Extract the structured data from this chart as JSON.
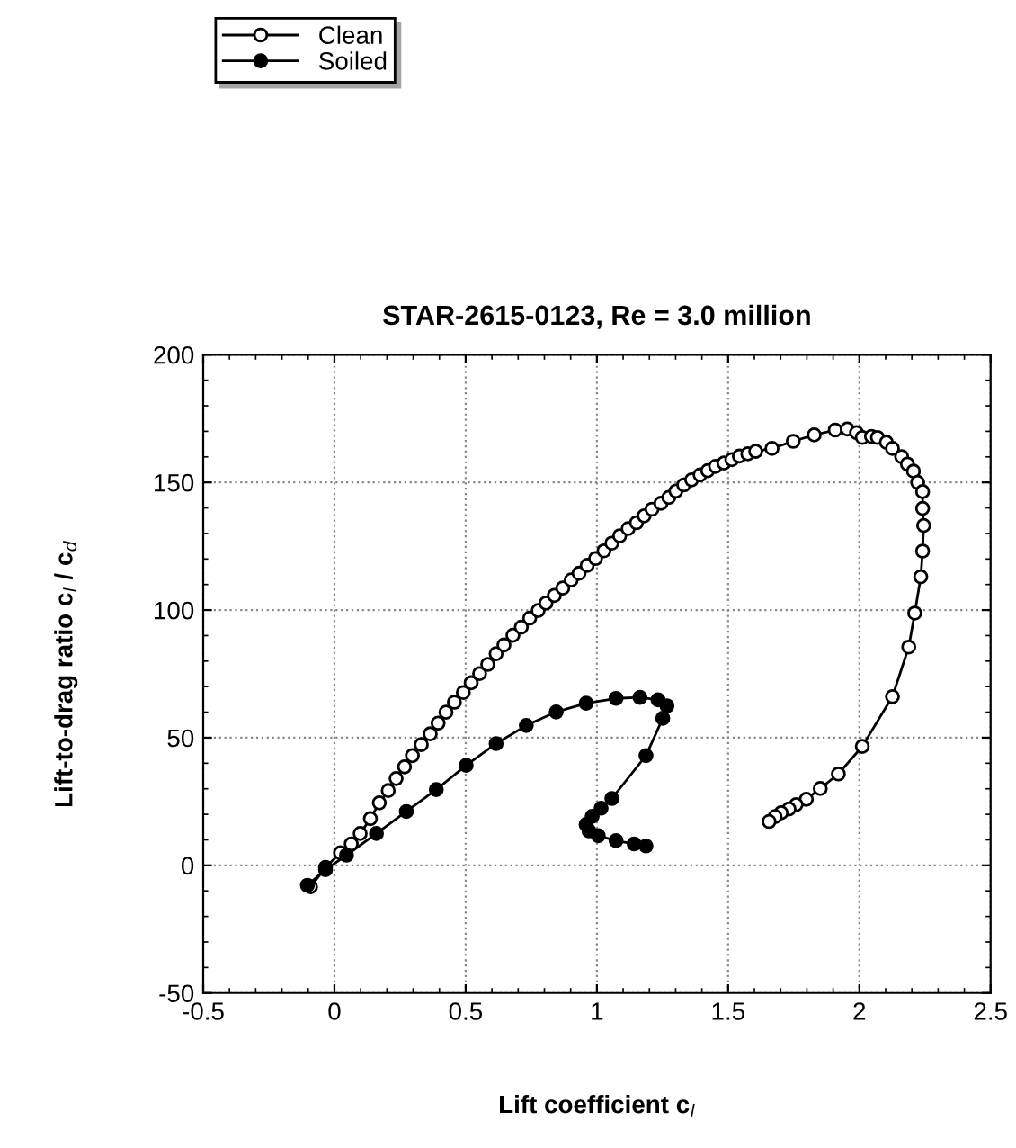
{
  "chart_data": {
    "type": "line",
    "title": "STAR-2615-0123, Re = 3.0 million",
    "xlabel": "Lift coefficient c$_{l}$",
    "ylabel": "Lift-to-drag ratio c$_{l}$ / c$_{d}$",
    "xlim": [
      -0.5,
      2.5
    ],
    "xticks": [
      -0.5,
      0,
      0.5,
      1,
      1.5,
      2,
      2.5
    ],
    "ylim": [
      -50,
      200
    ],
    "yticks": [
      -50,
      0,
      50,
      100,
      150,
      200
    ],
    "grid": true,
    "legend": "top left",
    "line_style": "solid",
    "series": [
      {
        "name": "Clean",
        "color": "#000000",
        "marker": "circle",
        "x": [
          -0.091,
          -0.034,
          0.023,
          0.064,
          0.098,
          0.137,
          0.171,
          0.205,
          0.235,
          0.267,
          0.297,
          0.331,
          0.365,
          0.395,
          0.425,
          0.457,
          0.491,
          0.521,
          0.553,
          0.584,
          0.616,
          0.646,
          0.68,
          0.712,
          0.744,
          0.776,
          0.806,
          0.838,
          0.87,
          0.902,
          0.932,
          0.963,
          0.995,
          1.027,
          1.057,
          1.087,
          1.119,
          1.151,
          1.18,
          1.21,
          1.244,
          1.274,
          1.301,
          1.331,
          1.361,
          1.393,
          1.422,
          1.452,
          1.484,
          1.514,
          1.543,
          1.575,
          1.605,
          1.667,
          1.748,
          1.828,
          1.908,
          1.954,
          1.989,
          2.011,
          2.046,
          2.069,
          2.103,
          2.126,
          2.161,
          2.183,
          2.206,
          2.222,
          2.241,
          2.241,
          2.245,
          2.241,
          2.234,
          2.211,
          2.188,
          2.126,
          2.011,
          1.92,
          1.851,
          1.798,
          1.759,
          1.732,
          1.702,
          1.679,
          1.656
        ],
        "values": [
          -8.4,
          -0.8,
          4.9,
          8.4,
          12.5,
          18.3,
          24.5,
          29.3,
          34,
          38.6,
          43,
          47.3,
          51.5,
          55.7,
          60,
          63.9,
          67.7,
          71.5,
          75.1,
          78.7,
          82.9,
          86.3,
          90.1,
          93.3,
          96.8,
          99.8,
          102.7,
          105.7,
          108.6,
          111.8,
          114.4,
          117.5,
          120.2,
          123.2,
          126.2,
          129.1,
          131.9,
          134.2,
          136.9,
          139.5,
          141.8,
          144.1,
          146.6,
          149,
          151,
          152.9,
          154.6,
          156.3,
          157.6,
          158.9,
          160.3,
          161.2,
          162.2,
          163.3,
          166.1,
          168.6,
          170.5,
          170.9,
          169.5,
          167.6,
          168,
          167.6,
          165.7,
          163.3,
          160.1,
          157.2,
          154.4,
          150,
          146.4,
          139.8,
          133.1,
          123.1,
          113,
          98.8,
          85.5,
          66.1,
          46.6,
          35.8,
          30.1,
          25.9,
          23.8,
          22.1,
          20.6,
          19.1,
          17.2
        ]
      },
      {
        "name": "Soiled",
        "color": "#000000",
        "marker": "circle",
        "x": [
          -0.103,
          -0.034,
          0.046,
          0.16,
          0.274,
          0.388,
          0.502,
          0.616,
          0.731,
          0.845,
          0.959,
          1.073,
          1.164,
          1.233,
          1.267,
          1.251,
          1.187,
          1.057,
          1.016,
          0.982,
          0.959,
          0.97,
          1.005,
          1.073,
          1.142,
          1.187
        ],
        "values": [
          -7.8,
          -1.7,
          4,
          12.5,
          21.1,
          29.7,
          39.2,
          47.7,
          54.8,
          60.1,
          63.5,
          65.4,
          65.8,
          64.8,
          62.5,
          57.6,
          43,
          26.2,
          22.4,
          19.2,
          16,
          13.5,
          11.6,
          9.7,
          8.4,
          7.6
        ]
      }
    ]
  }
}
